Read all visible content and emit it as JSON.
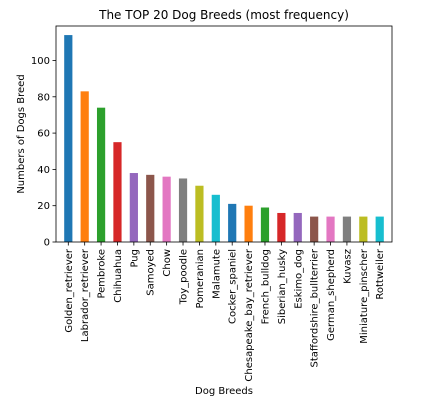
{
  "chart_data": {
    "type": "bar",
    "title": "The TOP 20 Dog Breeds (most frequency)",
    "xlabel": "Dog Breeds",
    "ylabel": "Numbers of Dogs Breed",
    "ylim": [
      0,
      119
    ],
    "yticks": [
      0,
      20,
      40,
      60,
      80,
      100
    ],
    "grid": false,
    "legend": "none",
    "categories": [
      "Golden_retriever",
      "Labrador_retriever",
      "Pembroke",
      "Chihuahua",
      "Pug",
      "Samoyed",
      "Chow",
      "Toy_poodle",
      "Pomeranian",
      "Malamute",
      "Cocker_spaniel",
      "Chesapeake_bay_retriever",
      "French_bulldog",
      "Siberian_husky",
      "Eskimo_dog",
      "Staffordshire_bullterrier",
      "German_shepherd",
      "Kuvasz",
      "Miniature_pinscher",
      "Rottweiler"
    ],
    "values": [
      114,
      83,
      74,
      55,
      38,
      37,
      36,
      35,
      31,
      26,
      21,
      20,
      19,
      16,
      16,
      14,
      14,
      14,
      14,
      14
    ],
    "colors": [
      "#1f77b4",
      "#ff7f0e",
      "#2ca02c",
      "#d62728",
      "#9467bd",
      "#8c564b",
      "#e377c2",
      "#7f7f7f",
      "#bcbd22",
      "#17becf"
    ]
  }
}
